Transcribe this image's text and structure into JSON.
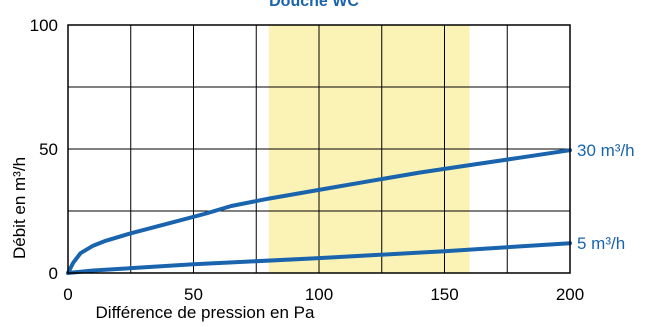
{
  "chart_data": {
    "type": "line",
    "title": "Douche WC",
    "xlabel": "Différence de pression en Pa",
    "ylabel": "Débit en m³/h",
    "xlim": [
      0,
      200
    ],
    "ylim": [
      0,
      100
    ],
    "x_ticks": [
      "0",
      "50",
      "100",
      "150",
      "200"
    ],
    "y_ticks": [
      "0",
      "50",
      "100"
    ],
    "grid": true,
    "highlight_band": {
      "x_from": 80,
      "x_to": 160,
      "color": "#fbf3b5"
    },
    "series_color": "#1a64ae",
    "series": [
      {
        "name": "30 m³/h",
        "x": [
          0,
          2,
          5,
          10,
          15,
          25,
          40,
          55,
          65,
          80,
          100,
          120,
          140,
          160,
          180,
          200
        ],
        "y": [
          0,
          4,
          8,
          11,
          13,
          16,
          20,
          24,
          27,
          30,
          33.5,
          37,
          40.5,
          43.5,
          46.5,
          49.5
        ]
      },
      {
        "name": "5 m³/h",
        "x": [
          0,
          10,
          50,
          100,
          150,
          200
        ],
        "y": [
          0,
          1,
          3.5,
          6,
          8.8,
          12
        ]
      }
    ]
  }
}
